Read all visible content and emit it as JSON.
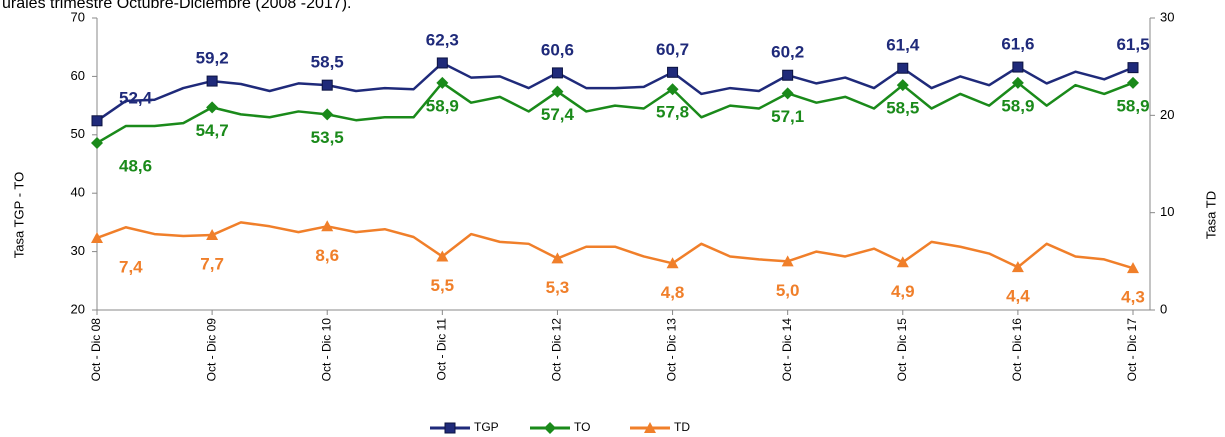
{
  "chart_data": {
    "type": "line",
    "title": "urales trimestre Octubre-Diciembre (2008 -2017).",
    "y_label": "Tasa TGP - TO",
    "y2_label": "Tasa TD",
    "categories": [
      "Oct - Dic 08",
      null,
      null,
      null,
      "Oct - Dic 09",
      null,
      null,
      null,
      "Oct - Dic 10",
      null,
      null,
      null,
      "Oct - Dic 11",
      null,
      null,
      null,
      "Oct - Dic 12",
      null,
      null,
      null,
      "Oct - Dic 13",
      null,
      null,
      null,
      "Oct - Dic 14",
      null,
      null,
      null,
      "Oct - Dic 15",
      null,
      null,
      null,
      "Oct - Dic 16",
      null,
      null,
      null,
      "Oct - Dic 17"
    ],
    "ylim": [
      20,
      70
    ],
    "yticks": [
      20,
      30,
      40,
      50,
      60,
      70
    ],
    "y2lim": [
      0,
      30
    ],
    "y2ticks": [
      0,
      10,
      20,
      30
    ],
    "series": [
      {
        "name": "TGP",
        "color": "#1f2a7a",
        "marker": "square",
        "values": [
          52.4,
          55.8,
          56,
          58,
          59.2,
          58.7,
          57.5,
          58.8,
          58.5,
          57.5,
          58,
          57.8,
          62.3,
          59.8,
          60,
          58,
          60.6,
          58,
          58,
          58.2,
          60.7,
          57,
          58,
          57.5,
          60.2,
          58.8,
          59.8,
          58,
          61.4,
          58,
          60,
          58.5,
          61.6,
          58.8,
          60.8,
          59.5,
          61.5
        ],
        "value_labels": [
          "52,4",
          null,
          null,
          null,
          "59,2",
          null,
          null,
          null,
          "58,5",
          null,
          null,
          null,
          "62,3",
          null,
          null,
          null,
          "60,6",
          null,
          null,
          null,
          "60,7",
          null,
          null,
          null,
          "60,2",
          null,
          null,
          null,
          "61,4",
          null,
          null,
          null,
          "61,6",
          null,
          null,
          null,
          "61,5"
        ]
      },
      {
        "name": "TO",
        "color": "#1a8a1a",
        "marker": "diamond",
        "values": [
          48.6,
          51.5,
          51.5,
          52,
          54.7,
          53.5,
          53,
          54,
          53.5,
          52.5,
          53,
          53,
          58.9,
          55.5,
          56.5,
          54,
          57.4,
          54,
          55,
          54.5,
          57.8,
          53,
          55,
          54.5,
          57.1,
          55.5,
          56.5,
          54.5,
          58.5,
          54.5,
          57,
          55,
          58.9,
          55,
          58.5,
          57,
          58.9
        ],
        "value_labels": [
          "48,6",
          null,
          null,
          null,
          "54,7",
          null,
          null,
          null,
          "53,5",
          null,
          null,
          null,
          "58,9",
          null,
          null,
          null,
          "57,4",
          null,
          null,
          null,
          "57,8",
          null,
          null,
          null,
          "57,1",
          null,
          null,
          null,
          "58,5",
          null,
          null,
          null,
          "58,9",
          null,
          null,
          null,
          "58,9"
        ]
      },
      {
        "name": "TD",
        "color": "#f07f2a",
        "marker": "triangle",
        "axis": "y2",
        "values": [
          7.4,
          8.5,
          7.8,
          7.6,
          7.7,
          9,
          8.6,
          8,
          8.6,
          8,
          8.3,
          7.5,
          5.5,
          7.8,
          7,
          6.8,
          5.3,
          6.5,
          6.5,
          5.5,
          4.8,
          6.8,
          5.5,
          5.2,
          5.0,
          6.0,
          5.5,
          6.3,
          4.9,
          7.0,
          6.5,
          5.8,
          4.4,
          6.8,
          5.5,
          5.2,
          4.3
        ],
        "value_labels": [
          "7,4",
          null,
          null,
          null,
          "7,7",
          null,
          null,
          null,
          "8,6",
          null,
          null,
          null,
          "5,5",
          null,
          null,
          null,
          "5,3",
          null,
          null,
          null,
          "4,8",
          null,
          null,
          null,
          "5,0",
          null,
          null,
          null,
          "4,9",
          null,
          null,
          null,
          "4,4",
          null,
          null,
          null,
          "4,3"
        ]
      }
    ]
  }
}
